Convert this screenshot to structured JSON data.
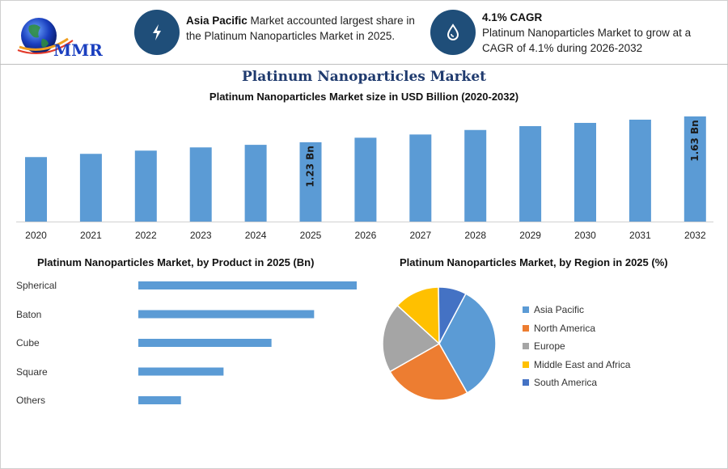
{
  "logo": {
    "text": "MMR"
  },
  "info_cards": [
    {
      "icon": "lightning-icon",
      "bold": "Asia Pacific",
      "text": " Market accounted largest share in the Platinum Nanoparticles Market in 2025."
    },
    {
      "icon": "drop-icon",
      "bold": "4.1% CAGR",
      "text": "Platinum Nanoparticles Market to grow at a CAGR of 4.1% during 2026-2032"
    }
  ],
  "colors": {
    "bar": "#5b9bd5",
    "badge": "#1f4e79",
    "title": "#1f3a6e"
  },
  "title": "Platinum Nanoparticles Market",
  "subtitle": "Platinum Nanoparticles Market size in USD Billion (2020-2032)",
  "product_title": "Platinum Nanoparticles Market, by Product in 2025 (Bn)",
  "region_title": "Platinum Nanoparticles Market, by Region in 2025 (%)",
  "chart_data": [
    {
      "type": "bar",
      "title": "Platinum Nanoparticles Market size in USD Billion (2020-2032)",
      "categories": [
        "2020",
        "2021",
        "2022",
        "2023",
        "2024",
        "2025",
        "2026",
        "2027",
        "2028",
        "2029",
        "2030",
        "2031",
        "2032"
      ],
      "values": [
        1.0,
        1.05,
        1.1,
        1.15,
        1.19,
        1.23,
        1.3,
        1.35,
        1.42,
        1.48,
        1.53,
        1.58,
        1.63
      ],
      "data_labels": {
        "2025": "1.23 Bn",
        "2032": "1.63 Bn"
      },
      "ylim": [
        0,
        1.63
      ],
      "grid": false
    },
    {
      "type": "bar",
      "orientation": "horizontal",
      "title": "Platinum Nanoparticles Market, by Product in 2025 (Bn)",
      "categories": [
        "Spherical",
        "Baton",
        "Cube",
        "Square",
        "Others"
      ],
      "values": [
        0.41,
        0.33,
        0.25,
        0.16,
        0.08
      ],
      "xlim": [
        0,
        0.41
      ],
      "axis_labels_shown": false,
      "grid": false
    },
    {
      "type": "pie",
      "title": "Platinum Nanoparticles Market, by Region in 2025 (%)",
      "categories": [
        "Asia Pacific",
        "North America",
        "Europe",
        "Middle East and Africa",
        "South America"
      ],
      "values": [
        34,
        25,
        20,
        13,
        8
      ],
      "colors": [
        "#5b9bd5",
        "#ed7d31",
        "#a5a5a5",
        "#ffc000",
        "#4472c4"
      ],
      "legend_position": "right"
    }
  ]
}
